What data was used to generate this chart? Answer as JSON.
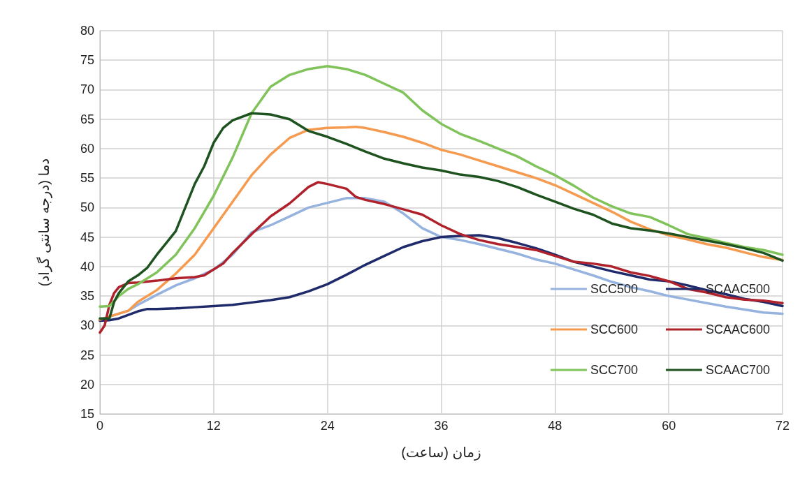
{
  "chart_data": {
    "type": "line",
    "xlabel": "زمان (ساعت)",
    "ylabel": "دما (درجه سانتی گراد)",
    "xlim": [
      0,
      72
    ],
    "xticks": [
      0,
      12,
      24,
      36,
      48,
      60,
      72
    ],
    "ylim": [
      15,
      80
    ],
    "yticks": [
      15,
      20,
      25,
      30,
      35,
      40,
      45,
      50,
      55,
      60,
      65,
      70,
      75,
      80
    ],
    "grid": true,
    "legend": "bottom right",
    "marker": "none",
    "line_style": "solid",
    "series": [
      {
        "name": "SCC500",
        "color": "#95b3de",
        "x": [
          0,
          1,
          2,
          3,
          4,
          6,
          8,
          10,
          12,
          14,
          16,
          18,
          20,
          22,
          24,
          26,
          28,
          30,
          32,
          34,
          36,
          38,
          40,
          42,
          44,
          46,
          48,
          50,
          52,
          54,
          56,
          58,
          60,
          62,
          64,
          66,
          68,
          70,
          72
        ],
        "values": [
          31,
          31.5,
          32,
          32.5,
          33.5,
          35.2,
          36.8,
          38,
          39.5,
          42,
          45.8,
          47,
          48.5,
          50,
          50.8,
          51.6,
          51.6,
          51,
          49,
          46.5,
          45,
          44.5,
          43.8,
          43,
          42.2,
          41.2,
          40.5,
          39.5,
          38.5,
          37.4,
          36.5,
          35.8,
          35,
          34.4,
          33.8,
          33.2,
          32.7,
          32.2,
          32
        ]
      },
      {
        "name": "SCAAC500",
        "color": "#1f2a6b",
        "x": [
          0,
          1,
          2,
          3,
          4,
          5,
          6,
          8,
          10,
          12,
          14,
          16,
          18,
          20,
          22,
          24,
          26,
          28,
          30,
          32,
          34,
          36,
          38,
          40,
          42,
          44,
          46,
          48,
          50,
          52,
          54,
          56,
          58,
          60,
          62,
          64,
          66,
          68,
          70,
          72
        ],
        "values": [
          30.8,
          30.9,
          31.2,
          31.8,
          32.4,
          32.8,
          32.8,
          32.9,
          33.1,
          33.3,
          33.5,
          33.9,
          34.3,
          34.8,
          35.8,
          37,
          38.6,
          40.3,
          41.8,
          43.3,
          44.3,
          45,
          45.2,
          45.3,
          44.8,
          44,
          43.1,
          42,
          40.8,
          40,
          39.2,
          38.5,
          37.8,
          37.5,
          36.8,
          36,
          35.3,
          34.5,
          34,
          33.3
        ]
      },
      {
        "name": "SCC600",
        "color": "#f59a4e",
        "x": [
          0,
          1,
          2,
          3,
          4,
          6,
          8,
          10,
          12,
          14,
          16,
          18,
          20,
          22,
          24,
          26,
          27,
          28,
          30,
          32,
          34,
          36,
          38,
          40,
          42,
          44,
          46,
          48,
          50,
          52,
          54,
          56,
          58,
          60,
          62,
          64,
          66,
          68,
          70,
          72
        ],
        "values": [
          31,
          31.5,
          32,
          32.5,
          34,
          36,
          38.8,
          42,
          46.5,
          51,
          55.5,
          59,
          61.8,
          63.2,
          63.5,
          63.6,
          63.7,
          63.5,
          62.8,
          62,
          61,
          59.8,
          59,
          58,
          57,
          56,
          55,
          53.8,
          52.3,
          50.8,
          49.3,
          47.6,
          46.3,
          45.3,
          44.6,
          43.8,
          43.2,
          42.4,
          41.6,
          41.1
        ]
      },
      {
        "name": "SCAAC600",
        "color": "#b0222b",
        "x": [
          0,
          0.5,
          1,
          1.5,
          2,
          3,
          4,
          6,
          8,
          10,
          11,
          12,
          13,
          14,
          16,
          18,
          20,
          22,
          23,
          24,
          26,
          27,
          28,
          30,
          32,
          34,
          36,
          38,
          40,
          42,
          44,
          46,
          48,
          50,
          52,
          54,
          56,
          58,
          60,
          62,
          64,
          66,
          68,
          70,
          72
        ],
        "values": [
          28.8,
          30,
          33.5,
          35.5,
          36.5,
          37.2,
          37.3,
          37.6,
          38,
          38.2,
          38.5,
          39.5,
          40.5,
          42.3,
          45.5,
          48.5,
          50.7,
          53.5,
          54.3,
          54,
          53.2,
          51.8,
          51.3,
          50.6,
          49.7,
          48.8,
          47,
          45.5,
          44.5,
          43.8,
          43.3,
          42.8,
          41.8,
          40.8,
          40.5,
          40,
          39,
          38.4,
          37.5,
          36.2,
          35.6,
          34.8,
          34.4,
          34.2,
          33.8
        ]
      },
      {
        "name": "SCC700",
        "color": "#7fc35a",
        "x": [
          0,
          1,
          2,
          3,
          4,
          6,
          8,
          10,
          12,
          14,
          16,
          18,
          20,
          22,
          24,
          26,
          28,
          30,
          32,
          34,
          36,
          38,
          40,
          42,
          44,
          46,
          48,
          50,
          52,
          54,
          56,
          58,
          60,
          62,
          64,
          66,
          68,
          70,
          72
        ],
        "values": [
          33.2,
          33.3,
          35,
          36.2,
          37,
          39,
          42,
          46.5,
          52,
          58.5,
          66,
          70.5,
          72.5,
          73.5,
          74,
          73.5,
          72.5,
          71,
          69.5,
          66.5,
          64.2,
          62.5,
          61.3,
          60,
          58.7,
          57,
          55.5,
          53.7,
          51.7,
          50.2,
          49,
          48.4,
          47,
          45.5,
          44.8,
          44,
          43.3,
          42.8,
          42
        ]
      },
      {
        "name": "SCAAC700",
        "color": "#1e5320",
        "x": [
          0,
          1,
          1.5,
          2,
          3,
          4,
          5,
          6,
          7,
          8,
          9,
          10,
          11,
          12,
          13,
          14,
          16,
          18,
          20,
          22,
          24,
          26,
          28,
          30,
          32,
          34,
          36,
          38,
          40,
          42,
          44,
          46,
          48,
          50,
          52,
          54,
          56,
          58,
          60,
          62,
          64,
          66,
          68,
          70,
          72
        ],
        "values": [
          31.2,
          31.2,
          34,
          35.5,
          37.5,
          38.5,
          39.8,
          42,
          44,
          46,
          50,
          54,
          57,
          61,
          63.5,
          64.8,
          66,
          65.8,
          65,
          63,
          62,
          60.8,
          59.5,
          58.3,
          57.5,
          56.8,
          56.3,
          55.6,
          55.2,
          54.5,
          53.5,
          52.2,
          51,
          49.8,
          48.8,
          47.3,
          46.5,
          46.1,
          45.6,
          45,
          44.4,
          43.8,
          43.1,
          42.3,
          41
        ]
      }
    ]
  }
}
